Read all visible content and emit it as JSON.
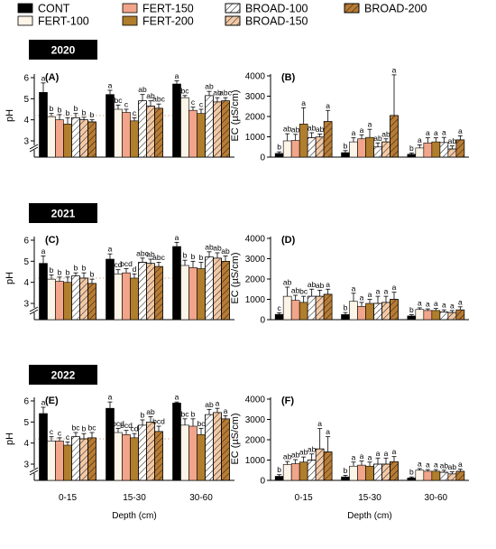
{
  "legend": [
    {
      "name": "CONT",
      "fill": "#000000",
      "pattern": "none"
    },
    {
      "name": "FERT-100",
      "fill": "#fdf4e8",
      "pattern": "none"
    },
    {
      "name": "FERT-150",
      "fill": "#f2a58a",
      "pattern": "none"
    },
    {
      "name": "FERT-200",
      "fill": "#b07e2c",
      "pattern": "none"
    },
    {
      "name": "BROAD-100",
      "fill": "#ffffff",
      "pattern": "hatch"
    },
    {
      "name": "BROAD-150",
      "fill": "#f3c9a6",
      "pattern": "hatch"
    },
    {
      "name": "BROAD-200",
      "fill": "#b97b32",
      "pattern": "hatch"
    }
  ],
  "years": [
    "2020",
    "2021",
    "2022"
  ],
  "chart_data": [
    {
      "panel": "(A)",
      "type": "bar",
      "year": "2020",
      "categories": [
        "0-15",
        "15-30",
        "30-60"
      ],
      "xlabel": "",
      "ylabel": "pH",
      "ylim": [
        2,
        6
      ],
      "yticks": [
        3,
        4,
        5,
        6
      ],
      "values": [
        [
          5.3,
          4.15,
          4.0,
          3.8,
          4.1,
          4.0,
          3.9
        ],
        [
          5.2,
          4.5,
          4.35,
          3.95,
          4.9,
          4.65,
          4.55
        ],
        [
          5.7,
          5.05,
          4.45,
          4.3,
          5.15,
          4.85,
          4.9
        ]
      ],
      "errors": [
        [
          0.45,
          0.15,
          0.25,
          0.3,
          0.2,
          0.12,
          0.1
        ],
        [
          0.2,
          0.2,
          0.15,
          0.15,
          0.3,
          0.25,
          0.2
        ],
        [
          0.15,
          0.1,
          0.15,
          0.2,
          0.2,
          0.2,
          0.15
        ]
      ],
      "letters": [
        [
          "a",
          "b",
          "b",
          "b",
          "b",
          "b",
          "b"
        ],
        [
          "a",
          "bc",
          "c",
          "c",
          "ab",
          "ab",
          "abc"
        ],
        [
          "a",
          "bc",
          "c",
          "c",
          "ab",
          "ab",
          "abc"
        ]
      ]
    },
    {
      "panel": "(B)",
      "type": "bar",
      "year": "2020",
      "categories": [
        "0-15",
        "15-30",
        "30-60"
      ],
      "xlabel": "",
      "ylabel": "EC (µS/cm)",
      "ylim": [
        0,
        4000
      ],
      "yticks": [
        0,
        1000,
        2000,
        3000,
        4000
      ],
      "values": [
        [
          180,
          800,
          820,
          1630,
          950,
          990,
          1750
        ],
        [
          220,
          750,
          900,
          970,
          500,
          750,
          2050
        ],
        [
          140,
          450,
          700,
          750,
          720,
          400,
          850
        ]
      ],
      "errors": [
        [
          80,
          350,
          300,
          800,
          250,
          150,
          550
        ],
        [
          100,
          200,
          200,
          400,
          200,
          150,
          2000
        ],
        [
          60,
          150,
          250,
          200,
          250,
          150,
          200
        ]
      ],
      "letters": [
        [
          "b",
          "ab",
          "ab",
          "a",
          "ab",
          "ab",
          "a"
        ],
        [
          "b",
          "a",
          "a",
          "a",
          "ab",
          "ab",
          "a"
        ],
        [
          "b",
          "a",
          "a",
          "a",
          "a",
          "ab",
          "a"
        ]
      ]
    },
    {
      "panel": "(C)",
      "type": "bar",
      "year": "2021",
      "categories": [
        "0-15",
        "15-30",
        "30-60"
      ],
      "xlabel": "",
      "ylabel": "pH",
      "ylim": [
        2,
        6
      ],
      "yticks": [
        3,
        4,
        5,
        6
      ],
      "values": [
        [
          4.9,
          4.15,
          4.05,
          4.0,
          4.3,
          4.2,
          3.95
        ],
        [
          5.1,
          4.4,
          4.45,
          4.2,
          4.95,
          4.9,
          4.75
        ],
        [
          5.7,
          4.8,
          4.7,
          4.65,
          5.2,
          5.15,
          5.0
        ]
      ],
      "errors": [
        [
          0.35,
          0.2,
          0.2,
          0.25,
          0.15,
          0.25,
          0.2
        ],
        [
          0.25,
          0.2,
          0.2,
          0.2,
          0.2,
          0.2,
          0.2
        ],
        [
          0.2,
          0.25,
          0.3,
          0.3,
          0.25,
          0.25,
          0.25
        ]
      ],
      "letters": [
        [
          "a",
          "b",
          "b",
          "b",
          "b",
          "b",
          "b"
        ],
        [
          "a",
          "cd",
          "bcd",
          "d",
          "abc",
          "ab",
          "abc"
        ],
        [
          "a",
          "b",
          "b",
          "b",
          "ab",
          "ab",
          "ab"
        ]
      ]
    },
    {
      "panel": "(D)",
      "type": "bar",
      "year": "2021",
      "categories": [
        "0-15",
        "15-30",
        "30-60"
      ],
      "xlabel": "",
      "ylabel": "EC (µS/cm)",
      "ylim": [
        0,
        4000
      ],
      "yticks": [
        0,
        1000,
        2000,
        3000,
        4000
      ],
      "values": [
        [
          260,
          1150,
          950,
          850,
          1150,
          1150,
          1250
        ],
        [
          250,
          900,
          650,
          800,
          800,
          850,
          1000
        ],
        [
          180,
          500,
          450,
          450,
          380,
          350,
          480
        ]
      ],
      "errors": [
        [
          80,
          450,
          250,
          300,
          350,
          300,
          250
        ],
        [
          100,
          400,
          200,
          200,
          350,
          300,
          350
        ],
        [
          60,
          80,
          80,
          100,
          100,
          100,
          150
        ]
      ],
      "letters": [
        [
          "c",
          "ab",
          "ab",
          "bc",
          "ab",
          "ab",
          "a"
        ],
        [
          "b",
          "a",
          "a",
          "a",
          "a",
          "a",
          "a"
        ],
        [
          "b",
          "a",
          "a",
          "a",
          "a",
          "a",
          "a"
        ]
      ]
    },
    {
      "panel": "(E)",
      "type": "bar",
      "year": "2022",
      "categories": [
        "0-15",
        "15-30",
        "30-60"
      ],
      "xlabel": "Depth (cm)",
      "ylabel": "pH",
      "ylim": [
        2,
        6
      ],
      "yticks": [
        3,
        4,
        5,
        6
      ],
      "values": [
        [
          5.4,
          4.1,
          4.1,
          3.9,
          4.3,
          4.2,
          4.25
        ],
        [
          5.65,
          4.5,
          4.4,
          4.25,
          4.85,
          5.0,
          4.55
        ],
        [
          5.9,
          4.85,
          4.8,
          4.4,
          5.35,
          5.45,
          5.15
        ]
      ],
      "errors": [
        [
          0.3,
          0.2,
          0.15,
          0.15,
          0.2,
          0.25,
          0.25
        ],
        [
          0.3,
          0.2,
          0.2,
          0.2,
          0.25,
          0.25,
          0.25
        ],
        [
          0.05,
          0.3,
          0.35,
          0.3,
          0.25,
          0.2,
          0.15
        ]
      ],
      "letters": [
        [
          "a",
          "c",
          "c",
          "c",
          "bc",
          "b",
          "bc"
        ],
        [
          "a",
          "bcd",
          "bcd",
          "cd",
          "b",
          "ab",
          "bcd"
        ],
        [
          "a",
          "bc",
          "b",
          "bc",
          "ab",
          "a",
          "a"
        ]
      ]
    },
    {
      "panel": "(F)",
      "type": "bar",
      "year": "2022",
      "categories": [
        "0-15",
        "15-30",
        "30-60"
      ],
      "xlabel": "Depth (cm)",
      "ylabel": "EC (µS/cm)",
      "ylim": [
        0,
        4000
      ],
      "yticks": [
        0,
        1000,
        2000,
        3000,
        4000
      ],
      "values": [
        [
          200,
          780,
          820,
          900,
          1000,
          1550,
          1400
        ],
        [
          170,
          700,
          750,
          700,
          800,
          800,
          920
        ],
        [
          120,
          500,
          450,
          450,
          400,
          320,
          450
        ]
      ],
      "errors": [
        [
          80,
          150,
          200,
          250,
          300,
          1000,
          750
        ],
        [
          80,
          200,
          200,
          200,
          300,
          300,
          250
        ],
        [
          50,
          80,
          80,
          80,
          100,
          100,
          100
        ]
      ],
      "letters": [
        [
          "b",
          "ab",
          "ab",
          "ab",
          "ab",
          "a",
          "a"
        ],
        [
          "b",
          "a",
          "a",
          "a",
          "a",
          "a",
          "a"
        ],
        [
          "b",
          "a",
          "a",
          "a",
          "ab",
          "ab",
          "a"
        ]
      ]
    }
  ]
}
